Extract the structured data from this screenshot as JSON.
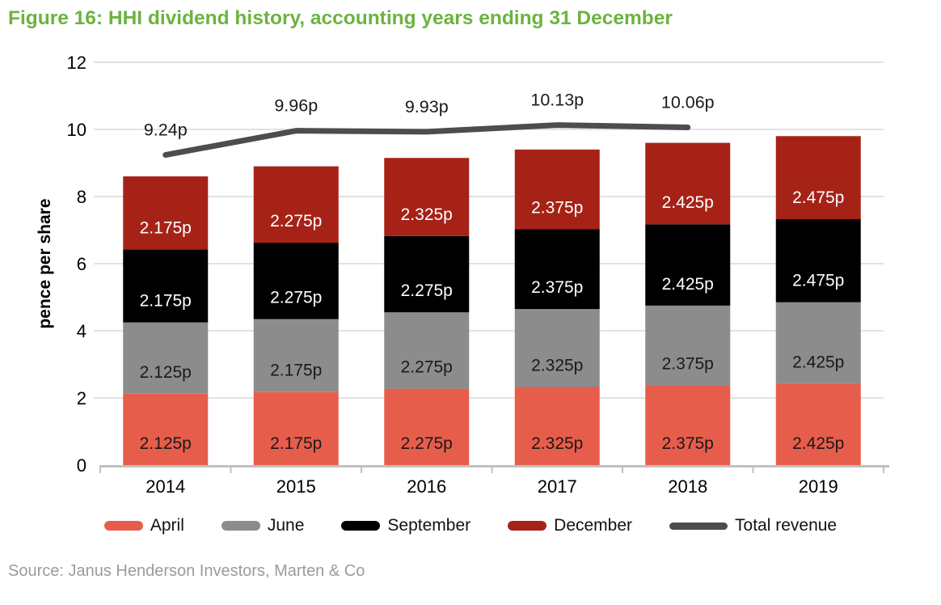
{
  "figure": {
    "title": "Figure 16: HHI dividend history, accounting years ending 31 December",
    "title_color": "#6CB33F",
    "source": "Source: Janus Henderson Investors, Marten & Co"
  },
  "chart_data": {
    "type": "bar",
    "subtype": "stacked-bars-with-line-overlay",
    "title": "Figure 16: HHI dividend history, accounting years ending 31 December",
    "xlabel": "",
    "ylabel": "pence per share",
    "ylim": [
      0,
      12
    ],
    "yticks": [
      0,
      2,
      4,
      6,
      8,
      10,
      12
    ],
    "grid": true,
    "legend_position": "bottom",
    "categories": [
      "2014",
      "2015",
      "2016",
      "2017",
      "2018",
      "2019"
    ],
    "series": [
      {
        "name": "April",
        "color": "#E75D4B",
        "label_color": "#1A1A1A",
        "values": [
          2.125,
          2.175,
          2.275,
          2.325,
          2.375,
          2.425
        ]
      },
      {
        "name": "June",
        "color": "#8C8C8C",
        "label_color": "#1A1A1A",
        "values": [
          2.125,
          2.175,
          2.275,
          2.325,
          2.375,
          2.425
        ]
      },
      {
        "name": "September",
        "color": "#000000",
        "label_color": "#FFFFFF",
        "values": [
          2.175,
          2.275,
          2.275,
          2.375,
          2.425,
          2.475
        ]
      },
      {
        "name": "December",
        "color": "#A62217",
        "label_color": "#FFFFFF",
        "values": [
          2.175,
          2.275,
          2.325,
          2.375,
          2.425,
          2.475
        ]
      }
    ],
    "line_series": {
      "name": "Total revenue",
      "color": "#4D4D4D",
      "values": [
        9.24,
        9.96,
        9.93,
        10.13,
        10.06,
        null
      ],
      "point_labels": [
        "9.24p",
        "9.96p",
        "9.93p",
        "10.13p",
        "10.06p",
        ""
      ]
    },
    "bar_value_suffix": "p",
    "bar_value_decimals": 3,
    "bar_totals": [
      8.6,
      8.9,
      9.15,
      9.4,
      9.6,
      9.8
    ]
  }
}
